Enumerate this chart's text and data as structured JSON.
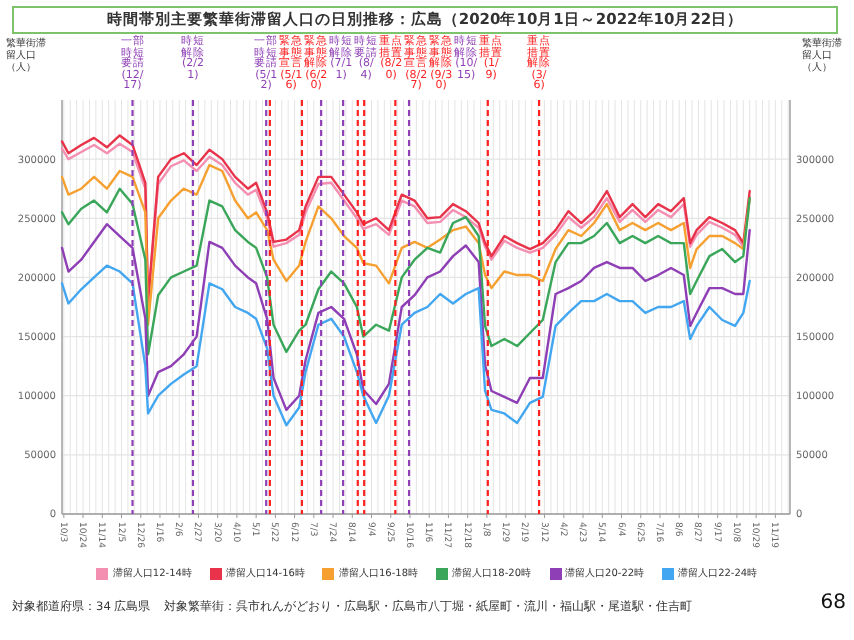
{
  "chart_data": {
    "type": "line",
    "title": "時間帯別主要繁華街滞留人口の日別推移：広島（2020年10月1日～2022年10月22日）",
    "ylabel": "繁華街滞留人口（人）",
    "y2label": "繁華街滞留人口（人）",
    "x": [
      "2020-10-01",
      "2020-10-08",
      "2020-10-22",
      "2020-11-05",
      "2020-11-19",
      "2020-12-03",
      "2020-12-17",
      "2020-12-31",
      "2021-01-03",
      "2021-01-14",
      "2021-01-28",
      "2021-02-11",
      "2021-02-25",
      "2021-03-11",
      "2021-03-25",
      "2021-04-08",
      "2021-04-22",
      "2021-05-01",
      "2021-05-13",
      "2021-05-20",
      "2021-06-03",
      "2021-06-17",
      "2021-06-24",
      "2021-07-08",
      "2021-07-22",
      "2021-08-05",
      "2021-08-19",
      "2021-08-26",
      "2021-09-09",
      "2021-09-23",
      "2021-10-07",
      "2021-10-21",
      "2021-11-04",
      "2021-11-18",
      "2021-12-02",
      "2021-12-16",
      "2021-12-30",
      "2022-01-06",
      "2022-01-13",
      "2022-01-27",
      "2022-02-10",
      "2022-02-24",
      "2022-03-10",
      "2022-03-24",
      "2022-04-07",
      "2022-04-21",
      "2022-05-05",
      "2022-05-19",
      "2022-06-02",
      "2022-06-16",
      "2022-06-30",
      "2022-07-14",
      "2022-07-28",
      "2022-08-11",
      "2022-08-18",
      "2022-08-25",
      "2022-09-08",
      "2022-09-22",
      "2022-10-06",
      "2022-10-15",
      "2022-10-22"
    ],
    "series": [
      {
        "name": "滞留人口12-14時",
        "color": "#f48fb1",
        "values": [
          309000,
          300000,
          306000,
          312000,
          305000,
          313000,
          306000,
          275000,
          178000,
          279000,
          294000,
          299000,
          290000,
          302000,
          295000,
          280000,
          270000,
          274000,
          250000,
          226000,
          229000,
          236000,
          255000,
          279000,
          280000,
          265000,
          250000,
          241000,
          245000,
          236000,
          265000,
          260000,
          246000,
          247000,
          257000,
          251000,
          242000,
          226000,
          215000,
          231000,
          225000,
          221000,
          225000,
          236000,
          251000,
          242000,
          251000,
          267000,
          247000,
          257000,
          247000,
          257000,
          251000,
          262000,
          226000,
          236000,
          247000,
          242000,
          236000,
          226000,
          268000
        ]
      },
      {
        "name": "滞留人口14-16時",
        "color": "#e8334a",
        "values": [
          315000,
          305000,
          312000,
          318000,
          310000,
          320000,
          312000,
          280000,
          180000,
          285000,
          300000,
          305000,
          295000,
          308000,
          300000,
          285000,
          275000,
          280000,
          255000,
          230000,
          232000,
          240000,
          260000,
          285000,
          285000,
          270000,
          255000,
          245000,
          250000,
          240000,
          270000,
          265000,
          250000,
          251000,
          262000,
          256000,
          246000,
          229000,
          218000,
          235000,
          229000,
          224000,
          229000,
          240000,
          256000,
          246000,
          256000,
          273000,
          251000,
          262000,
          251000,
          262000,
          256000,
          267000,
          229000,
          240000,
          251000,
          246000,
          240000,
          229000,
          273000
        ]
      },
      {
        "name": "滞留人口16-18時",
        "color": "#f5a031",
        "values": [
          285000,
          270000,
          275000,
          285000,
          275000,
          290000,
          285000,
          255000,
          160000,
          250000,
          265000,
          275000,
          270000,
          295000,
          290000,
          265000,
          250000,
          255000,
          240000,
          215000,
          197000,
          210000,
          230000,
          260000,
          250000,
          235000,
          225000,
          212000,
          210000,
          195000,
          225000,
          230000,
          225000,
          232000,
          240000,
          243000,
          229000,
          202000,
          191000,
          205000,
          202000,
          202000,
          197000,
          224000,
          240000,
          235000,
          246000,
          262000,
          240000,
          246000,
          240000,
          246000,
          240000,
          246000,
          208000,
          224000,
          235000,
          235000,
          229000,
          224000,
          267000
        ]
      },
      {
        "name": "滞留人口18-20時",
        "color": "#3aa65a",
        "values": [
          255000,
          245000,
          258000,
          265000,
          255000,
          275000,
          262000,
          215000,
          135000,
          185000,
          200000,
          205000,
          210000,
          265000,
          260000,
          240000,
          230000,
          225000,
          200000,
          160000,
          137000,
          155000,
          160000,
          190000,
          205000,
          195000,
          175000,
          150000,
          160000,
          155000,
          200000,
          215000,
          225000,
          221000,
          246000,
          251000,
          235000,
          159000,
          142000,
          148000,
          142000,
          153000,
          164000,
          213000,
          229000,
          229000,
          235000,
          246000,
          229000,
          235000,
          229000,
          235000,
          229000,
          229000,
          186000,
          197000,
          218000,
          224000,
          213000,
          218000,
          267000
        ]
      },
      {
        "name": "滞留人口20-22時",
        "color": "#8e3fb5",
        "values": [
          225000,
          205000,
          215000,
          230000,
          245000,
          235000,
          225000,
          165000,
          100000,
          120000,
          125000,
          135000,
          150000,
          230000,
          225000,
          210000,
          200000,
          195000,
          165000,
          115000,
          88000,
          100000,
          130000,
          170000,
          175000,
          165000,
          135000,
          105000,
          93000,
          110000,
          175000,
          185000,
          200000,
          205000,
          218000,
          227000,
          213000,
          126000,
          104000,
          99000,
          94000,
          115000,
          115000,
          186000,
          191000,
          197000,
          208000,
          213000,
          208000,
          208000,
          197000,
          202000,
          208000,
          202000,
          159000,
          170000,
          191000,
          191000,
          186000,
          186000,
          240000
        ]
      },
      {
        "name": "滞留人口22-24時",
        "color": "#43a6f0",
        "values": [
          195000,
          178000,
          190000,
          200000,
          210000,
          205000,
          195000,
          125000,
          85000,
          100000,
          110000,
          118000,
          125000,
          195000,
          190000,
          175000,
          170000,
          165000,
          140000,
          100000,
          75000,
          90000,
          120000,
          160000,
          165000,
          150000,
          120000,
          100000,
          77000,
          100000,
          160000,
          170000,
          175000,
          186000,
          178000,
          186000,
          191000,
          104000,
          88000,
          85000,
          77000,
          94000,
          99000,
          159000,
          170000,
          180000,
          180000,
          186000,
          180000,
          180000,
          170000,
          175000,
          175000,
          180000,
          148000,
          159000,
          175000,
          164000,
          159000,
          170000,
          197000
        ]
      }
    ],
    "xlim": [
      "2020-10-01",
      "2022-12-05"
    ],
    "xticks": [
      {
        "value": "2020-10-03",
        "label": "10/3"
      },
      {
        "value": "2020-10-24",
        "label": "10/24"
      },
      {
        "value": "2020-11-14",
        "label": "11/14"
      },
      {
        "value": "2020-12-05",
        "label": "12/5"
      },
      {
        "value": "2020-12-26",
        "label": "12/26"
      },
      {
        "value": "2021-01-16",
        "label": "1/16"
      },
      {
        "value": "2021-02-06",
        "label": "2/6"
      },
      {
        "value": "2021-02-27",
        "label": "2/27"
      },
      {
        "value": "2021-03-20",
        "label": "3/20"
      },
      {
        "value": "2021-04-10",
        "label": "4/10"
      },
      {
        "value": "2021-05-01",
        "label": "5/1"
      },
      {
        "value": "2021-05-22",
        "label": "5/22"
      },
      {
        "value": "2021-06-12",
        "label": "6/12"
      },
      {
        "value": "2021-07-03",
        "label": "7/3"
      },
      {
        "value": "2021-07-24",
        "label": "7/24"
      },
      {
        "value": "2021-08-14",
        "label": "8/14"
      },
      {
        "value": "2021-09-04",
        "label": "9/4"
      },
      {
        "value": "2021-09-25",
        "label": "9/25"
      },
      {
        "value": "2021-10-16",
        "label": "10/16"
      },
      {
        "value": "2021-11-06",
        "label": "11/6"
      },
      {
        "value": "2021-11-27",
        "label": "11/27"
      },
      {
        "value": "2021-12-18",
        "label": "12/18"
      },
      {
        "value": "2022-01-08",
        "label": "1/8"
      },
      {
        "value": "2022-01-29",
        "label": "1/29"
      },
      {
        "value": "2022-02-19",
        "label": "2/19"
      },
      {
        "value": "2022-03-12",
        "label": "3/12"
      },
      {
        "value": "2022-04-02",
        "label": "4/2"
      },
      {
        "value": "2022-04-23",
        "label": "4/23"
      },
      {
        "value": "2022-05-14",
        "label": "5/14"
      },
      {
        "value": "2022-06-04",
        "label": "6/4"
      },
      {
        "value": "2022-06-25",
        "label": "6/25"
      },
      {
        "value": "2022-07-16",
        "label": "7/16"
      },
      {
        "value": "2022-08-06",
        "label": "8/6"
      },
      {
        "value": "2022-08-27",
        "label": "8/27"
      },
      {
        "value": "2022-09-17",
        "label": "9/17"
      },
      {
        "value": "2022-10-08",
        "label": "10/8"
      },
      {
        "value": "2022-10-29",
        "label": "10/29"
      },
      {
        "value": "2022-11-19",
        "label": "11/19"
      }
    ],
    "ylim": [
      0,
      350000
    ],
    "yticks": [
      0,
      50000,
      100000,
      150000,
      200000,
      250000,
      300000
    ],
    "y2lim": [
      0,
      350000
    ],
    "y2ticks": [
      0,
      50000,
      100000,
      150000,
      200000,
      250000,
      300000
    ],
    "grid": true,
    "legend": "bottom",
    "ref_lines": [
      {
        "axis": "x",
        "value": "2020-12-17",
        "label": "一部時短要請(12/17)",
        "color": "#8e3fb5",
        "line_style": "dashed"
      },
      {
        "axis": "x",
        "value": "2021-02-21",
        "label": "時短解除(2/21)",
        "color": "#8e3fb5",
        "line_style": "dashed"
      },
      {
        "axis": "x",
        "value": "2021-05-12",
        "label": "一部時短要請(5/12)",
        "color": "#8e3fb5",
        "line_style": "dashed"
      },
      {
        "axis": "x",
        "value": "2021-05-16",
        "label": "緊急事態宣言(5/16)",
        "color": "#ff2020",
        "line_style": "dashed"
      },
      {
        "axis": "x",
        "value": "2021-06-20",
        "label": "緊急事態解除(6/20)",
        "color": "#ff2020",
        "line_style": "dashed"
      },
      {
        "axis": "x",
        "value": "2021-07-11",
        "label": "時短解除(7/11)",
        "color": "#8e3fb5",
        "line_style": "dashed"
      },
      {
        "axis": "x",
        "value": "2021-08-04",
        "label": "時短要請(8/4)",
        "color": "#8e3fb5",
        "line_style": "dashed"
      },
      {
        "axis": "x",
        "value": "2021-08-20",
        "label": "重点措置(8/20)",
        "color": "#ff2020",
        "line_style": "dashed"
      },
      {
        "axis": "x",
        "value": "2021-08-27",
        "label": "緊急事態宣言(8/27)",
        "color": "#ff2020",
        "line_style": "dashed"
      },
      {
        "axis": "x",
        "value": "2021-09-30",
        "label": "緊急事態解除(9/30)",
        "color": "#ff2020",
        "line_style": "dashed"
      },
      {
        "axis": "x",
        "value": "2021-10-15",
        "label": "時短解除(10/15)",
        "color": "#8e3fb5",
        "line_style": "dashed"
      },
      {
        "axis": "x",
        "value": "2022-01-09",
        "label": "重点措置(1/9)",
        "color": "#ff2020",
        "line_style": "dashed"
      },
      {
        "axis": "x",
        "value": "2022-03-06",
        "label": "重点措置解除(3/6)",
        "color": "#ff2020",
        "line_style": "dashed"
      }
    ],
    "annotations": [
      "対象都道府県：34 広島県",
      "対象繁華街：呉市れんがどおり・広島駅・広島市八丁堀・紙屋町・流川・福山駅・尾道駅・住吉町",
      "68"
    ]
  }
}
